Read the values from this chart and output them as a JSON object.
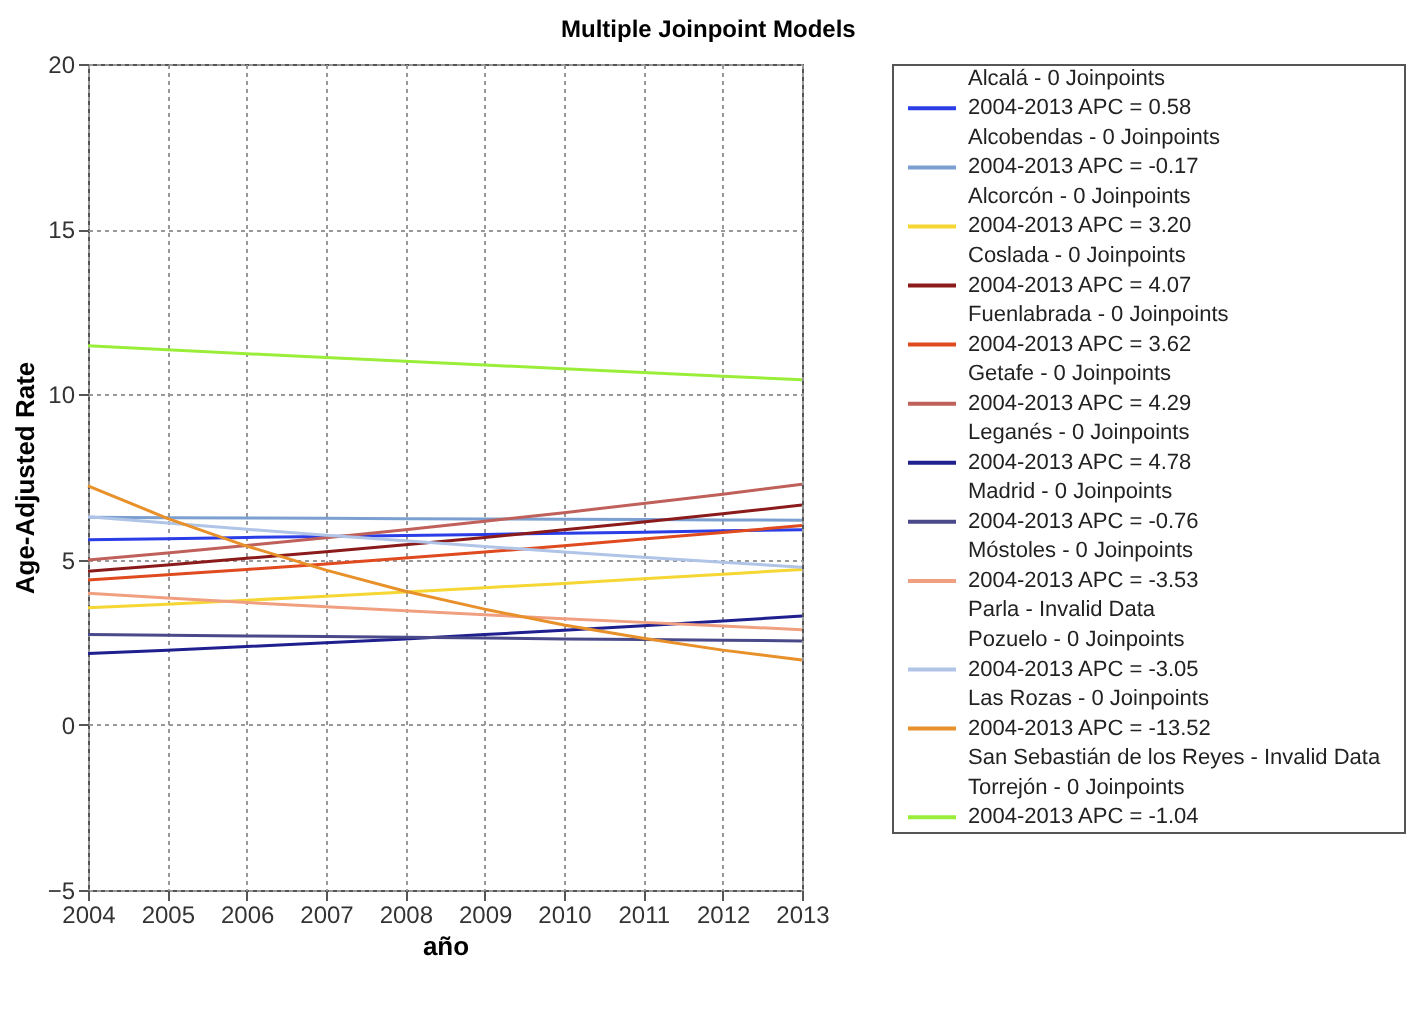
{
  "chart_data": {
    "type": "line",
    "title": "Multiple Joinpoint Models",
    "xlabel": "año",
    "ylabel": "Age-Adjusted Rate",
    "x": [
      2004,
      2005,
      2006,
      2007,
      2008,
      2009,
      2010,
      2011,
      2012,
      2013
    ],
    "xlim": [
      2004,
      2013
    ],
    "xticks": [
      2004,
      2005,
      2006,
      2007,
      2008,
      2009,
      2010,
      2011,
      2012,
      2013
    ],
    "ylim": [
      -5,
      20
    ],
    "yticks": [
      -5,
      0,
      5,
      10,
      15,
      20
    ],
    "grid": true,
    "legend": "right",
    "line_style": "solid",
    "series": [
      {
        "name": "Alcalá - 0 Joinpoints\n2004-2013 APC  = 0.58",
        "color": "#2b3de6",
        "values": [
          5.6,
          5.63,
          5.67,
          5.7,
          5.73,
          5.76,
          5.8,
          5.83,
          5.87,
          5.9
        ]
      },
      {
        "name": "Alcobendas - 0 Joinpoints\n2004-2013 APC  = -0.17",
        "color": "#7b9fd0",
        "values": [
          6.28,
          6.27,
          6.26,
          6.25,
          6.24,
          6.23,
          6.22,
          6.21,
          6.2,
          6.19
        ]
      },
      {
        "name": "Alcorcón - 0 Joinpoints\n2004-2013 APC  = 3.20",
        "color": "#f5d633",
        "values": [
          3.54,
          3.65,
          3.77,
          3.89,
          4.02,
          4.15,
          4.28,
          4.42,
          4.56,
          4.7
        ]
      },
      {
        "name": "Coslada - 0 Joinpoints\n2004-2013 APC  = 4.07",
        "color": "#8b1a1a",
        "values": [
          4.65,
          4.84,
          5.04,
          5.24,
          5.45,
          5.67,
          5.9,
          6.14,
          6.39,
          6.65
        ]
      },
      {
        "name": "Fuenlabrada - 0 Joinpoints\n2004-2013 APC  = 3.62",
        "color": "#e04a1f",
        "values": [
          4.38,
          4.54,
          4.7,
          4.87,
          5.05,
          5.23,
          5.42,
          5.62,
          5.82,
          6.03
        ]
      },
      {
        "name": "Getafe - 0 Joinpoints\n2004-2013 APC  = 4.29",
        "color": "#c0605a",
        "values": [
          4.99,
          5.2,
          5.43,
          5.66,
          5.9,
          6.16,
          6.42,
          6.7,
          6.98,
          7.28
        ]
      },
      {
        "name": "Leganés - 0 Joinpoints\n2004-2013 APC  = 4.78",
        "color": "#1f1f8f",
        "values": [
          2.16,
          2.26,
          2.37,
          2.48,
          2.6,
          2.73,
          2.86,
          3.0,
          3.14,
          3.29
        ]
      },
      {
        "name": "Madrid - 0 Joinpoints\n2004-2013 APC  = -0.76",
        "color": "#4a4a8a",
        "values": [
          2.73,
          2.71,
          2.69,
          2.67,
          2.65,
          2.63,
          2.6,
          2.58,
          2.56,
          2.54
        ]
      },
      {
        "name": "Móstoles - 0 Joinpoints\n2004-2013 APC  = -3.53",
        "color": "#f0a080",
        "values": [
          3.98,
          3.84,
          3.7,
          3.57,
          3.45,
          3.33,
          3.21,
          3.1,
          2.99,
          2.88
        ]
      },
      {
        "name": "Parla - Invalid Data",
        "values": [
          null,
          null,
          null,
          null,
          null,
          null,
          null,
          null,
          null,
          null
        ]
      },
      {
        "name": "Pozuelo - 0 Joinpoints\n2004-2013 APC  = -3.05",
        "color": "#b0c4e8",
        "values": [
          6.3,
          6.11,
          5.92,
          5.74,
          5.57,
          5.4,
          5.23,
          5.07,
          4.92,
          4.77
        ]
      },
      {
        "name": "Las Rozas - 0 Joinpoints\n2004-2013 APC  = -13.52",
        "color": "#e8902a",
        "values": [
          7.23,
          6.25,
          5.41,
          4.68,
          4.04,
          3.5,
          3.02,
          2.62,
          2.26,
          1.96
        ]
      },
      {
        "name": "San Sebastián de los Reyes - Invalid Data",
        "values": [
          null,
          null,
          null,
          null,
          null,
          null,
          null,
          null,
          null,
          null
        ]
      },
      {
        "name": "Torrejón - 0 Joinpoints\n2004-2013 APC  = -1.04",
        "color": "#9aee3a",
        "values": [
          11.47,
          11.35,
          11.23,
          11.12,
          11.0,
          10.89,
          10.78,
          10.66,
          10.55,
          10.44
        ]
      }
    ]
  }
}
